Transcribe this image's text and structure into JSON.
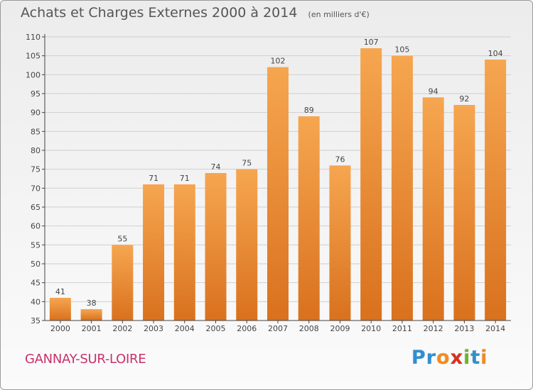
{
  "title": "Achats et Charges Externes 2000 à 2014",
  "subtitle": "(en milliers d'€)",
  "commune": "GANNAY-SUR-LOIRE",
  "logo": {
    "text": "Proxiti",
    "letter_colors": [
      "#2f8fd0",
      "#2f8fd0",
      "#f28c1d",
      "#d8301f",
      "#6bb42d",
      "#2f8fd0",
      "#f28c1d"
    ]
  },
  "colors": {
    "bar_light": "#f6a650",
    "bar_dark": "#d9711e",
    "grid": "#cfcfcf",
    "axis": "#444444",
    "commune": "#c8326b"
  },
  "chart_data": {
    "type": "bar",
    "categories": [
      "2000",
      "2001",
      "2002",
      "2003",
      "2004",
      "2005",
      "2006",
      "2007",
      "2008",
      "2009",
      "2010",
      "2011",
      "2012",
      "2013",
      "2014"
    ],
    "values": [
      41,
      38,
      55,
      71,
      71,
      74,
      75,
      102,
      89,
      76,
      107,
      105,
      94,
      92,
      104
    ],
    "title": "Achats et Charges Externes 2000 à 2014",
    "subtitle": "(en milliers d'€)",
    "xlabel": "",
    "ylabel": "",
    "ylim": [
      35,
      110
    ],
    "yticks": [
      35,
      40,
      45,
      50,
      55,
      60,
      65,
      70,
      75,
      80,
      85,
      90,
      95,
      100,
      105,
      110
    ],
    "grid": true,
    "data_labels": true
  }
}
